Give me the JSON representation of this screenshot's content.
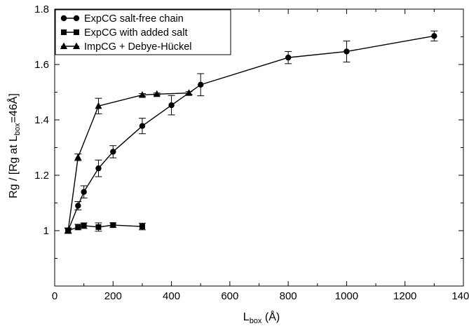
{
  "chart_data": {
    "type": "line",
    "title": "",
    "xlabel": {
      "main": "L",
      "sub": "box",
      "suffix": " (Å)"
    },
    "ylabel": {
      "prefix": "Rg / [Rg at L",
      "sub": "box",
      "suffix": "=46Å]"
    },
    "xlim": [
      0,
      1400
    ],
    "ylim": [
      0.8,
      1.8
    ],
    "xticks": [
      0,
      200,
      400,
      600,
      800,
      1000,
      1200,
      1400
    ],
    "yticks": [
      0.8,
      1,
      1.2,
      1.4,
      1.6,
      1.8
    ],
    "xtick_labels": [
      "0",
      "200",
      "400",
      "600",
      "800",
      "1000",
      "1200",
      "1400"
    ],
    "ytick_labels": [
      "",
      "1",
      "1.2",
      "1.4",
      "1.6",
      "1.8"
    ],
    "grid": false,
    "legend_position": "top-left",
    "series": [
      {
        "name": "ExpCG salt-free chain",
        "marker": "circle",
        "x": [
          46,
          80,
          100,
          150,
          200,
          300,
          400,
          500,
          800,
          1000,
          1300
        ],
        "y": [
          1.0,
          1.09,
          1.14,
          1.225,
          1.285,
          1.378,
          1.453,
          1.527,
          1.625,
          1.647,
          1.703
        ],
        "err": [
          0.01,
          0.015,
          0.022,
          0.03,
          0.022,
          0.028,
          0.035,
          0.04,
          0.022,
          0.038,
          0.018
        ]
      },
      {
        "name": "ExpCG with added salt",
        "marker": "square",
        "x": [
          46,
          80,
          100,
          150,
          200,
          300
        ],
        "y": [
          1.0,
          1.013,
          1.018,
          1.013,
          1.02,
          1.015
        ],
        "err": [
          0.008,
          0.01,
          0.01,
          0.015,
          0.008,
          0.012
        ]
      },
      {
        "name": "ImpCG + Debye-Hückel",
        "marker": "triangle",
        "x": [
          46,
          80,
          150,
          300,
          350,
          460
        ],
        "y": [
          1.0,
          1.265,
          1.45,
          1.49,
          1.493,
          1.497
        ],
        "err": [
          0.008,
          0.012,
          0.028,
          0.005,
          0.004,
          0.005
        ]
      }
    ]
  }
}
